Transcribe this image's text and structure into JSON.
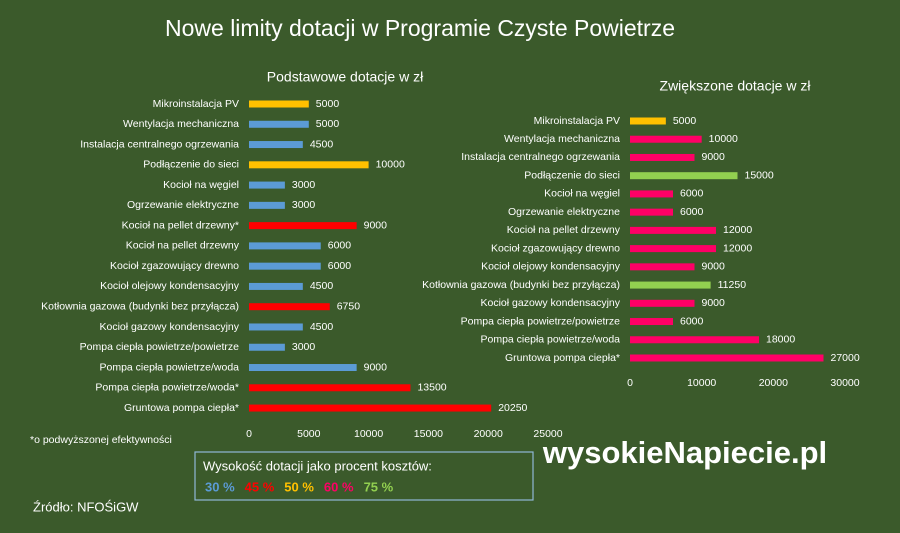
{
  "title": "Nowe limity dotacji w Programie Czyste Powietrze",
  "note": "*o podwyższonej efektywności",
  "source": "Źródło: NFOŚiGW",
  "logo": "wysokieNapiecie.pl",
  "legend": {
    "title": "Wysokość dotacji jako procent kosztów:",
    "items": [
      {
        "name": "30 %",
        "color": "#5b9bd5"
      },
      {
        "name": "45 %",
        "color": "#ff0000"
      },
      {
        "name": "50 %",
        "color": "#ffc000"
      },
      {
        "name": "60 %",
        "color": "#ff0066"
      },
      {
        "name": "75 %",
        "color": "#92d050"
      }
    ]
  },
  "chart_data": [
    {
      "type": "bar",
      "orientation": "horizontal",
      "title": "Podstawowe dotacje w zł",
      "categories": [
        "Mikroinstalacja PV",
        "Wentylacja mechaniczna",
        "Instalacja centralnego ogrzewania",
        "Podłączenie do sieci",
        "Kocioł na węgiel",
        "Ogrzewanie elektryczne",
        "Kocioł na pellet drzewny*",
        "Kocioł na pellet drzewny",
        "Kocioł zgazowujący drewno",
        "Kocioł olejowy kondensacyjny",
        "Kotłownia gazowa (budynki bez przyłącza)",
        "Kocioł gazowy kondensacyjny",
        "Pompa ciepła powietrze/powietrze",
        "Pompa ciepła powietrze/woda",
        "Pompa ciepła powietrze/woda*",
        "Gruntowa pompa ciepła*"
      ],
      "values": [
        5000,
        5000,
        4500,
        10000,
        3000,
        3000,
        9000,
        6000,
        6000,
        4500,
        6750,
        4500,
        3000,
        9000,
        13500,
        20250
      ],
      "colors": [
        "#ffc000",
        "#5b9bd5",
        "#5b9bd5",
        "#ffc000",
        "#5b9bd5",
        "#5b9bd5",
        "#ff0000",
        "#5b9bd5",
        "#5b9bd5",
        "#5b9bd5",
        "#ff0000",
        "#5b9bd5",
        "#5b9bd5",
        "#5b9bd5",
        "#ff0000",
        "#ff0000"
      ],
      "xlim": [
        0,
        25000
      ],
      "xticks": [
        0,
        5000,
        10000,
        15000,
        20000,
        25000
      ]
    },
    {
      "type": "bar",
      "orientation": "horizontal",
      "title": "Zwiększone dotacje w zł",
      "categories": [
        "Mikroinstalacja PV",
        "Wentylacja mechaniczna",
        "Instalacja centralnego ogrzewania",
        "Podłączenie do sieci",
        "Kocioł na węgiel",
        "Ogrzewanie elektryczne",
        "Kocioł na pellet drzewny",
        "Kocioł zgazowujący drewno",
        "Kocioł olejowy kondensacyjny",
        "Kotłownia gazowa (budynki bez przyłącza)",
        "Kocioł gazowy kondensacyjny",
        "Pompa ciepła powietrze/powietrze",
        "Pompa ciepła powietrze/woda",
        "Gruntowa pompa ciepła*"
      ],
      "values": [
        5000,
        10000,
        9000,
        15000,
        6000,
        6000,
        12000,
        12000,
        9000,
        11250,
        9000,
        6000,
        18000,
        27000
      ],
      "colors": [
        "#ffc000",
        "#ff0066",
        "#ff0066",
        "#92d050",
        "#ff0066",
        "#ff0066",
        "#ff0066",
        "#ff0066",
        "#ff0066",
        "#92d050",
        "#ff0066",
        "#ff0066",
        "#ff0066",
        "#ff0066"
      ],
      "xlim": [
        0,
        30000
      ],
      "xticks": [
        0,
        10000,
        20000,
        30000
      ]
    }
  ]
}
